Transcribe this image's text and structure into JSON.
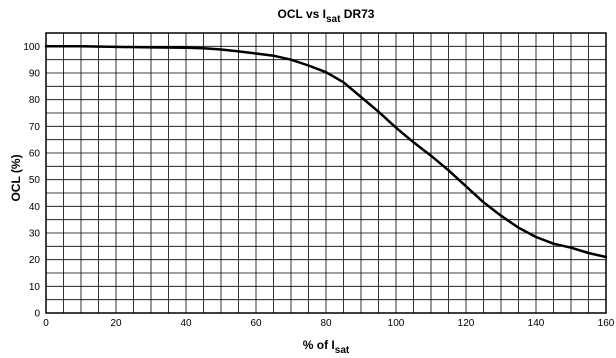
{
  "chart_data": {
    "type": "line",
    "title": {
      "prefix": "OCL vs I",
      "sub": "sat",
      "suffix": " DR73"
    },
    "xlabel": {
      "prefix": "% of I",
      "sub": "sat"
    },
    "ylabel": "OCL (%)",
    "xlim": [
      0,
      160
    ],
    "ylim": [
      0,
      105
    ],
    "x_ticks": [
      0,
      20,
      40,
      60,
      80,
      100,
      120,
      140,
      160
    ],
    "y_ticks": [
      0,
      10,
      20,
      30,
      40,
      50,
      60,
      70,
      80,
      90,
      100
    ],
    "x_grid_step": 5,
    "y_grid_step": 5,
    "grid": true,
    "series": [
      {
        "x": [
          0,
          10,
          20,
          30,
          40,
          45,
          50,
          55,
          60,
          65,
          70,
          75,
          80,
          85,
          90,
          95,
          100,
          105,
          110,
          115,
          120,
          125,
          130,
          135,
          140,
          145,
          150,
          155,
          160
        ],
        "y": [
          100,
          100,
          99.8,
          99.6,
          99.5,
          99.3,
          98.8,
          98.1,
          97.3,
          96.5,
          95,
          92.8,
          90.3,
          86.5,
          81,
          75.5,
          69.5,
          64,
          59,
          53.5,
          47.5,
          41.5,
          36.5,
          32,
          28.5,
          26,
          24.5,
          22.5,
          21
        ],
        "color": "#000000"
      }
    ]
  }
}
